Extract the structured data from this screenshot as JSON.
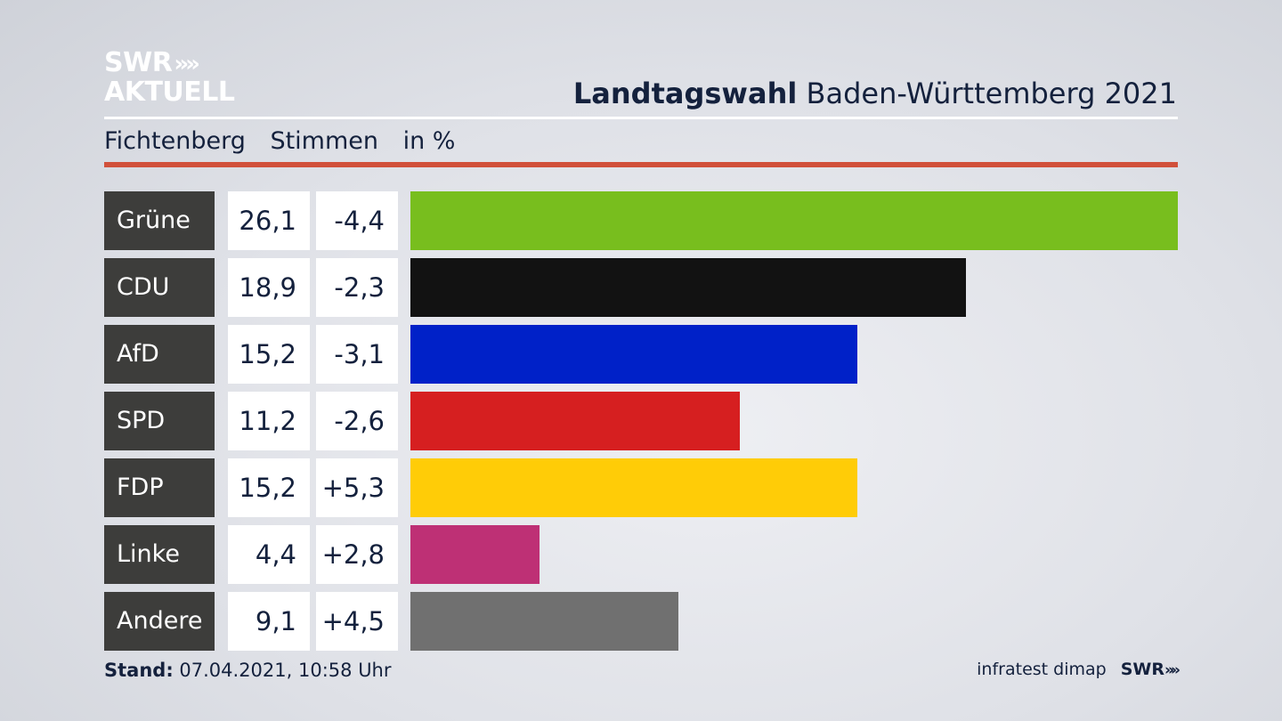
{
  "brand": {
    "logo_line1": "SWR",
    "logo_chevrons": "»",
    "logo_line2": "AKTUELL"
  },
  "header": {
    "title_bold": "Landtagswahl",
    "title_rest": "Baden-Württemberg 2021"
  },
  "subheader": {
    "place": "Fichtenberg",
    "measure": "Stimmen",
    "unit": "in %"
  },
  "footer": {
    "stand_label": "Stand:",
    "stand_value": "07.04.2021, 10:58 Uhr",
    "source": "infratest dimap",
    "swr": "SWR",
    "swr_chevrons": "»"
  },
  "colors": {
    "accent_red": "#d1503a",
    "label_bg": "#3d3d3b"
  },
  "chart_data": {
    "type": "bar",
    "orientation": "horizontal",
    "title": "Landtagswahl Baden-Württemberg 2021",
    "subtitle": "Fichtenberg Stimmen in %",
    "categories": [
      "Grüne",
      "CDU",
      "AfD",
      "SPD",
      "FDP",
      "Linke",
      "Andere"
    ],
    "values": [
      26.1,
      18.9,
      15.2,
      11.2,
      15.2,
      4.4,
      9.1
    ],
    "value_labels": [
      "26,1",
      "18,9",
      "15,2",
      "11,2",
      "15,2",
      "4,4",
      "9,1"
    ],
    "change_labels": [
      "-4,4",
      "-2,3",
      "-3,1",
      "-2,6",
      "+5,3",
      "+2,8",
      "+4,5"
    ],
    "changes": [
      -4.4,
      -2.3,
      -3.1,
      -2.6,
      5.3,
      2.8,
      4.5
    ],
    "colors": [
      "#78be1e",
      "#121212",
      "#0021c8",
      "#d61f20",
      "#ffcc07",
      "#be3075",
      "#707070"
    ],
    "xlim": [
      0,
      26.1
    ],
    "grid": false
  }
}
